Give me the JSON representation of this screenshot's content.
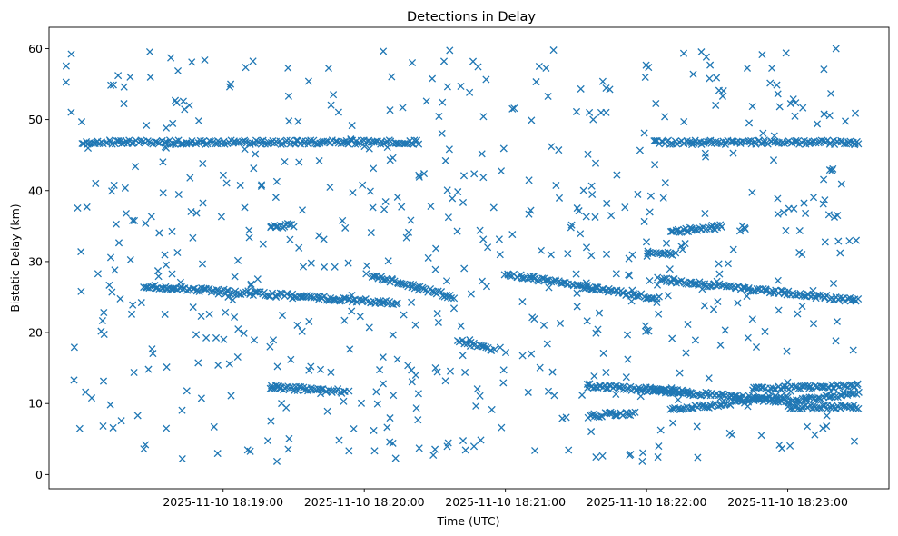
{
  "chart_data": {
    "type": "scatter",
    "title": "Detections in Delay",
    "xlabel": "Time (UTC)",
    "ylabel": "Bistatic Delay (km)",
    "xlim": [
      "2025-11-10 18:17:46",
      "2025-11-10 18:23:43"
    ],
    "ylim": [
      -2,
      63
    ],
    "x_ticks": [
      "2025-11-10 18:19:00",
      "2025-11-10 18:20:00",
      "2025-11-10 18:21:00",
      "2025-11-10 18:22:00",
      "2025-11-10 18:23:00"
    ],
    "y_ticks": [
      0,
      10,
      20,
      30,
      40,
      50,
      60
    ],
    "marker": "x",
    "color": "#1f77b4",
    "grid": false,
    "legend": "none",
    "tracks": [
      {
        "t0": "2025-11-10 18:18:00",
        "t1": "2025-11-10 18:20:23",
        "y0": 46.8,
        "y1": 46.8
      },
      {
        "t0": "2025-11-10 18:22:03",
        "t1": "2025-11-10 18:23:30",
        "y0": 46.8,
        "y1": 46.8
      },
      {
        "t0": "2025-11-10 18:18:26",
        "t1": "2025-11-10 18:20:14",
        "y0": 26.5,
        "y1": 24.2
      },
      {
        "t0": "2025-11-10 18:21:00",
        "t1": "2025-11-10 18:22:05",
        "y0": 28.3,
        "y1": 24.8
      },
      {
        "t0": "2025-11-10 18:22:05",
        "t1": "2025-11-10 18:23:30",
        "y0": 27.5,
        "y1": 24.5
      },
      {
        "t0": "2025-11-10 18:20:03",
        "t1": "2025-11-10 18:20:38",
        "y0": 28.0,
        "y1": 25.0
      },
      {
        "t0": "2025-11-10 18:20:40",
        "t1": "2025-11-10 18:20:55",
        "y0": 18.8,
        "y1": 17.5
      },
      {
        "t0": "2025-11-10 18:19:20",
        "t1": "2025-11-10 18:19:52",
        "y0": 12.3,
        "y1": 11.7
      },
      {
        "t0": "2025-11-10 18:21:35",
        "t1": "2025-11-10 18:22:20",
        "y0": 12.5,
        "y1": 11.5
      },
      {
        "t0": "2025-11-10 18:22:00",
        "t1": "2025-11-10 18:23:00",
        "y0": 12.0,
        "y1": 10.3
      },
      {
        "t0": "2025-11-10 18:22:10",
        "t1": "2025-11-10 18:23:00",
        "y0": 9.0,
        "y1": 11.0
      },
      {
        "t0": "2025-11-10 18:23:00",
        "t1": "2025-11-10 18:23:30",
        "y0": 10.3,
        "y1": 11.5
      },
      {
        "t0": "2025-11-10 18:21:35",
        "t1": "2025-11-10 18:21:55",
        "y0": 8.3,
        "y1": 8.6
      },
      {
        "t0": "2025-11-10 18:22:45",
        "t1": "2025-11-10 18:23:30",
        "y0": 12.0,
        "y1": 12.5
      },
      {
        "t0": "2025-11-10 18:23:00",
        "t1": "2025-11-10 18:23:30",
        "y0": 9.5,
        "y1": 9.5
      },
      {
        "t0": "2025-11-10 18:19:20",
        "t1": "2025-11-10 18:19:30",
        "y0": 34.8,
        "y1": 35.2
      },
      {
        "t0": "2025-11-10 18:22:00",
        "t1": "2025-11-10 18:22:12",
        "y0": 31.0,
        "y1": 31.0
      },
      {
        "t0": "2025-11-10 18:22:10",
        "t1": "2025-11-10 18:22:32",
        "y0": 34.2,
        "y1": 35.0
      }
    ],
    "scattered": {
      "t0": "2025-11-10 18:17:53",
      "t1": "2025-11-10 18:23:30",
      "y0": 1,
      "y1": 60,
      "count": 620
    }
  }
}
